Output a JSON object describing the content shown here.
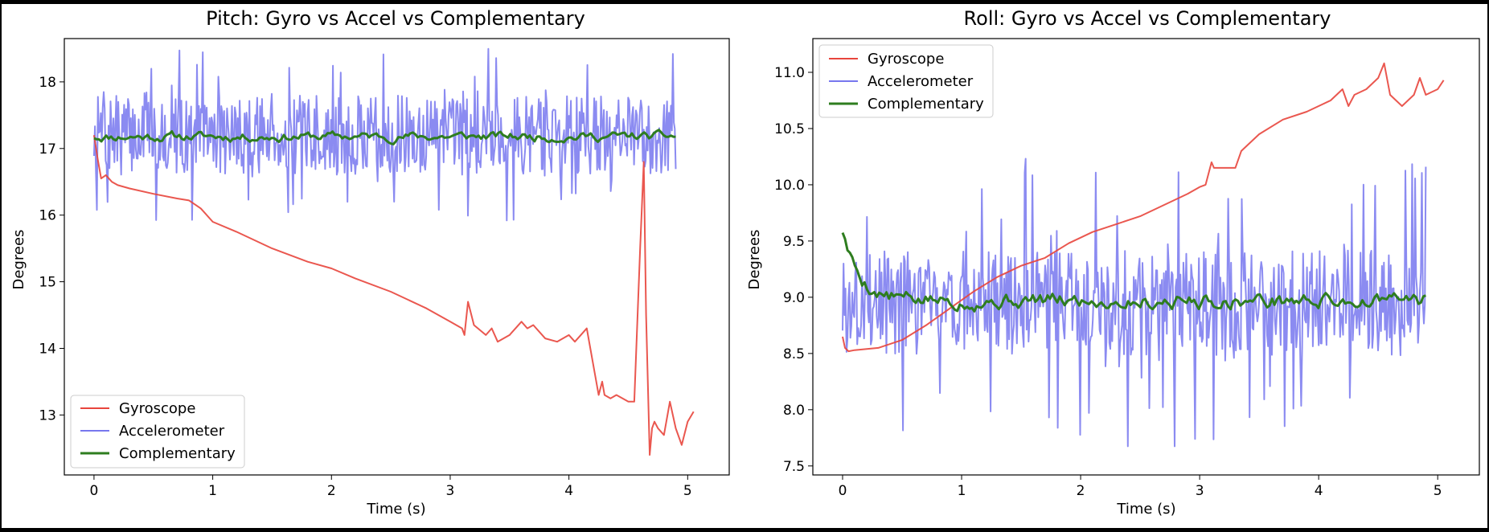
{
  "chart_data": [
    {
      "type": "line",
      "title": "Pitch: Gyro vs Accel vs Complementary",
      "xlabel": "Time (s)",
      "ylabel": "Degrees",
      "xlim": [
        -0.25,
        5.35
      ],
      "ylim": [
        12.1,
        18.65
      ],
      "xticks": [
        0,
        1,
        2,
        3,
        4,
        5
      ],
      "yticks": [
        13,
        14,
        15,
        16,
        17,
        18
      ],
      "legend": "lower-left",
      "series": [
        {
          "name": "Gyroscope",
          "color": "#e8453c",
          "style": "trend",
          "x": [
            0,
            0.03,
            0.06,
            0.1,
            0.15,
            0.2,
            0.3,
            0.5,
            0.7,
            0.8,
            0.9,
            1.0,
            1.2,
            1.5,
            1.8,
            2.0,
            2.2,
            2.5,
            2.8,
            3.0,
            3.1,
            3.12,
            3.15,
            3.2,
            3.3,
            3.35,
            3.4,
            3.5,
            3.6,
            3.65,
            3.7,
            3.8,
            3.9,
            4.0,
            4.05,
            4.1,
            4.15,
            4.2,
            4.25,
            4.28,
            4.3,
            4.35,
            4.4,
            4.5,
            4.55,
            4.6,
            4.63,
            4.65,
            4.68,
            4.7,
            4.72,
            4.75,
            4.8,
            4.85,
            4.9,
            4.95,
            5.0,
            5.05
          ],
          "y": [
            17.2,
            16.85,
            16.55,
            16.6,
            16.5,
            16.45,
            16.4,
            16.32,
            16.25,
            16.22,
            16.1,
            15.9,
            15.75,
            15.5,
            15.3,
            15.2,
            15.05,
            14.85,
            14.6,
            14.4,
            14.3,
            14.2,
            14.7,
            14.35,
            14.2,
            14.3,
            14.1,
            14.2,
            14.4,
            14.3,
            14.35,
            14.15,
            14.1,
            14.2,
            14.1,
            14.2,
            14.3,
            13.8,
            13.3,
            13.5,
            13.3,
            13.25,
            13.3,
            13.2,
            13.2,
            15.5,
            16.8,
            14.5,
            12.4,
            12.8,
            12.9,
            12.8,
            12.7,
            13.2,
            12.8,
            12.55,
            12.9,
            13.05
          ]
        },
        {
          "name": "Accelerometer",
          "color": "#7777ee",
          "style": "noise",
          "center": 17.2,
          "band": 0.7,
          "spike": 1.3,
          "x_end": 4.9,
          "count": 600,
          "seed": 7
        },
        {
          "name": "Complementary",
          "color": "#2e7d1f",
          "style": "smooth",
          "center": 17.18,
          "band": 0.05,
          "x_end": 4.9,
          "count": 240,
          "seed": 11
        }
      ]
    },
    {
      "type": "line",
      "title": "Roll: Gyro vs Accel vs Complementary",
      "xlabel": "Time (s)",
      "ylabel": "Degrees",
      "xlim": [
        -0.25,
        5.35
      ],
      "ylim": [
        7.42,
        11.3
      ],
      "xticks": [
        0,
        1,
        2,
        3,
        4,
        5
      ],
      "yticks": [
        7.5,
        8.0,
        8.5,
        9.0,
        9.5,
        10.0,
        10.5,
        11.0
      ],
      "legend": "upper-left",
      "series": [
        {
          "name": "Gyroscope",
          "color": "#e8453c",
          "style": "trend",
          "x": [
            0,
            0.02,
            0.05,
            0.1,
            0.3,
            0.5,
            0.7,
            0.9,
            1.1,
            1.3,
            1.5,
            1.7,
            1.9,
            2.1,
            2.3,
            2.5,
            2.7,
            2.9,
            3.0,
            3.05,
            3.1,
            3.12,
            3.3,
            3.35,
            3.5,
            3.7,
            3.9,
            4.1,
            4.2,
            4.25,
            4.3,
            4.4,
            4.5,
            4.55,
            4.6,
            4.65,
            4.7,
            4.8,
            4.85,
            4.9,
            5.0,
            5.05
          ],
          "y": [
            8.65,
            8.55,
            8.52,
            8.53,
            8.55,
            8.62,
            8.75,
            8.9,
            9.05,
            9.18,
            9.28,
            9.35,
            9.48,
            9.58,
            9.65,
            9.72,
            9.82,
            9.92,
            9.98,
            10.0,
            10.2,
            10.15,
            10.15,
            10.3,
            10.45,
            10.58,
            10.65,
            10.75,
            10.85,
            10.7,
            10.8,
            10.85,
            10.95,
            11.08,
            10.8,
            10.75,
            10.7,
            10.8,
            10.95,
            10.8,
            10.85,
            10.93
          ]
        },
        {
          "name": "Accelerometer",
          "color": "#7777ee",
          "style": "noise",
          "center": 8.95,
          "band": 0.55,
          "spike": 1.3,
          "x_end": 4.9,
          "count": 600,
          "seed": 3
        },
        {
          "name": "Complementary",
          "color": "#2e7d1f",
          "style": "smooth_decay",
          "start": 9.6,
          "center": 8.97,
          "band": 0.05,
          "decay": 0.35,
          "x_end": 4.9,
          "count": 240,
          "seed": 5
        }
      ]
    }
  ]
}
